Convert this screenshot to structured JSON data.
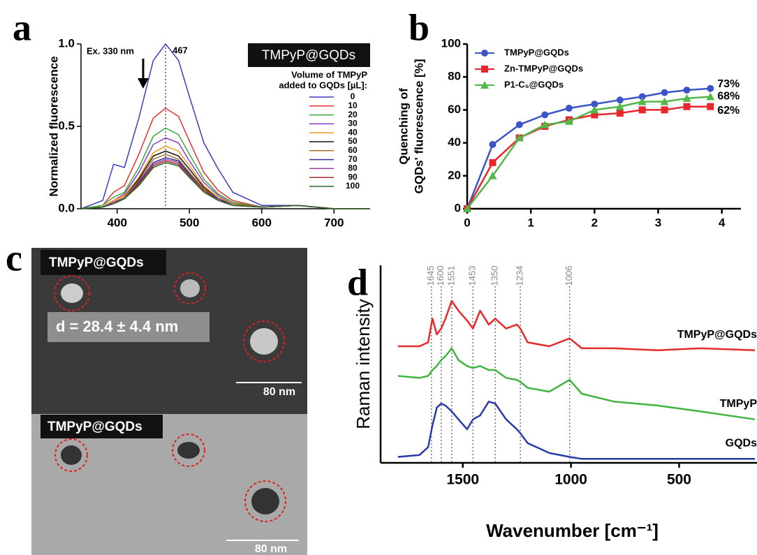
{
  "chart_data": [
    {
      "type": "line",
      "panel_label": "a",
      "y_label": "Normalized fluorescence",
      "annotations": {
        "excitation": "Ex. 330 nm",
        "peak": 467,
        "inset_title": "TMPyP@GQDs"
      },
      "legend_title": [
        "Volume of TMPyP",
        "added to GQDs  [µL]:"
      ],
      "legend_position": "right",
      "x": [
        350,
        380,
        395,
        410,
        430,
        450,
        467,
        485,
        500,
        520,
        540,
        560,
        600,
        650,
        700,
        750
      ],
      "xlim": [
        350,
        750
      ],
      "xticks": [
        400,
        500,
        600,
        700
      ],
      "ylim": [
        0,
        1
      ],
      "yticks": [
        {
          "value": 0,
          "label": "0.0"
        },
        0.5,
        {
          "value": 1,
          "label": "1.0"
        }
      ],
      "series": [
        {
          "name": "0",
          "color": "#3c3cc0",
          "values": [
            0,
            0.05,
            0.27,
            0.25,
            0.55,
            0.9,
            1.0,
            0.9,
            0.68,
            0.4,
            0.24,
            0.1,
            0.02,
            0.02,
            0,
            0
          ]
        },
        {
          "name": "10",
          "color": "#e83030",
          "values": [
            0,
            0.02,
            0.1,
            0.14,
            0.33,
            0.55,
            0.61,
            0.56,
            0.41,
            0.22,
            0.11,
            0.05,
            0.01,
            0.02,
            0,
            0
          ]
        },
        {
          "name": "20",
          "color": "#3aaa3a",
          "values": [
            0,
            0.02,
            0.07,
            0.1,
            0.25,
            0.44,
            0.49,
            0.45,
            0.33,
            0.18,
            0.09,
            0.04,
            0.01,
            0.02,
            0,
            0
          ]
        },
        {
          "name": "30",
          "color": "#8a3acc",
          "values": [
            0,
            0.01,
            0.05,
            0.09,
            0.22,
            0.39,
            0.43,
            0.4,
            0.29,
            0.16,
            0.08,
            0.03,
            0.01,
            0.02,
            0,
            0
          ]
        },
        {
          "name": "40",
          "color": "#f39a1a",
          "values": [
            0,
            0.01,
            0.05,
            0.08,
            0.19,
            0.34,
            0.38,
            0.35,
            0.26,
            0.14,
            0.07,
            0.03,
            0.01,
            0.02,
            0,
            0
          ]
        },
        {
          "name": "50",
          "color": "#111111",
          "values": [
            0,
            0.01,
            0.04,
            0.07,
            0.18,
            0.32,
            0.35,
            0.32,
            0.24,
            0.13,
            0.06,
            0.03,
            0.01,
            0.02,
            0,
            0
          ]
        },
        {
          "name": "60",
          "color": "#a8702a",
          "values": [
            0,
            0.01,
            0.04,
            0.07,
            0.17,
            0.3,
            0.33,
            0.3,
            0.22,
            0.12,
            0.06,
            0.03,
            0.01,
            0.02,
            0,
            0
          ]
        },
        {
          "name": "70",
          "color": "#2d2d9a",
          "values": [
            0,
            0.01,
            0.04,
            0.06,
            0.16,
            0.28,
            0.31,
            0.29,
            0.21,
            0.11,
            0.06,
            0.02,
            0.01,
            0.02,
            0,
            0
          ]
        },
        {
          "name": "80",
          "color": "#9a3a9a",
          "values": [
            0,
            0.01,
            0.04,
            0.06,
            0.15,
            0.27,
            0.3,
            0.28,
            0.2,
            0.11,
            0.05,
            0.02,
            0.01,
            0.02,
            0,
            0
          ]
        },
        {
          "name": "90",
          "color": "#aa2a2a",
          "values": [
            0,
            0.01,
            0.03,
            0.06,
            0.15,
            0.26,
            0.29,
            0.27,
            0.2,
            0.11,
            0.05,
            0.02,
            0.01,
            0.02,
            0,
            0
          ]
        },
        {
          "name": "100",
          "color": "#2a6a2a",
          "values": [
            0,
            0.01,
            0.03,
            0.06,
            0.14,
            0.25,
            0.28,
            0.26,
            0.19,
            0.1,
            0.05,
            0.02,
            0.01,
            0.02,
            0,
            0
          ]
        }
      ]
    },
    {
      "type": "line",
      "panel_label": "b",
      "y_label": [
        "Quenching of",
        "GQDs' fluorescence [%]"
      ],
      "legend_position": "upper left",
      "x": [
        0,
        0.4,
        0.82,
        1.22,
        1.6,
        2,
        2.4,
        2.75,
        3.1,
        3.45,
        3.82
      ],
      "xlim": [
        0,
        4.3
      ],
      "xticks": [
        0,
        1,
        2,
        3,
        4
      ],
      "ylim": [
        0,
        100
      ],
      "yticks": [
        0,
        20,
        40,
        60,
        80,
        100
      ],
      "series": [
        {
          "name": "TMPyP@GQDs",
          "color": "#3b55c8",
          "marker": "circle",
          "values": [
            0,
            39,
            51,
            57,
            61,
            63.5,
            66,
            68,
            70.5,
            72,
            73
          ],
          "value_labels": [
            null,
            null,
            null,
            null,
            null,
            null,
            null,
            null,
            null,
            null,
            "73%"
          ]
        },
        {
          "name": "Zn-TMPyP@GQDs",
          "color": "#e8262b",
          "marker": "square",
          "values": [
            0,
            28,
            43,
            50,
            54,
            57,
            58,
            60,
            60,
            62,
            62
          ],
          "value_labels": [
            null,
            null,
            null,
            null,
            null,
            null,
            null,
            null,
            null,
            null,
            "62%"
          ]
        },
        {
          "name": "P1-C₅@GQDs",
          "color": "#52b848",
          "marker": "triangle",
          "values": [
            0,
            20,
            43,
            51,
            53,
            60,
            62,
            65,
            65,
            67,
            68
          ],
          "value_labels": [
            null,
            null,
            null,
            null,
            null,
            null,
            null,
            null,
            null,
            null,
            "68%"
          ]
        }
      ]
    },
    {
      "type": "line",
      "panel_label": "d",
      "x_label": "Wavenumber [cm⁻¹]",
      "y_label": "Raman intensity",
      "legend_position": "line end",
      "reference_lines": [
        1645,
        1600,
        1551,
        1453,
        1350,
        1234,
        1006
      ],
      "x": [
        1800,
        1700,
        1660,
        1640,
        1620,
        1600,
        1580,
        1551,
        1520,
        1480,
        1453,
        1420,
        1380,
        1350,
        1300,
        1250,
        1234,
        1200,
        1100,
        1006,
        950,
        800,
        600,
        400,
        150
      ],
      "xlim": [
        1880,
        140
      ],
      "xticks": [
        1500,
        1000,
        500
      ],
      "ylim": [
        0,
        100
      ],
      "series": [
        {
          "name": "TMPyP@GQDs",
          "color": "#e52a2a",
          "values": [
            59,
            59,
            61,
            73,
            65,
            68,
            73,
            82,
            77,
            72,
            68,
            77,
            70,
            73,
            68,
            70,
            68,
            61,
            59,
            63,
            58,
            58,
            57,
            58,
            57
          ]
        },
        {
          "name": "TMPyP",
          "color": "#3fb53f",
          "values": [
            44,
            43,
            44,
            47,
            49,
            52,
            54,
            58,
            52,
            49,
            48,
            49,
            47,
            47,
            43,
            42,
            41,
            38,
            36,
            42,
            35,
            31,
            29,
            26,
            22
          ]
        },
        {
          "name": "GQDs",
          "color": "#2a3aa8",
          "values": [
            3,
            4,
            8,
            19,
            28,
            30,
            29,
            26,
            22,
            17,
            22,
            24,
            31,
            30,
            22,
            17,
            15,
            10,
            5,
            3,
            2,
            2,
            2,
            2,
            2
          ]
        }
      ]
    }
  ],
  "micrographs": {
    "panel_label": "c",
    "images": [
      {
        "label": "TMPyP@GQDs",
        "size_text": "d = 28.4 ± 4.4 nm",
        "scale_bar": "80 nm"
      },
      {
        "label": "TMPyP@GQDs",
        "scale_bar": "80 nm"
      }
    ]
  }
}
